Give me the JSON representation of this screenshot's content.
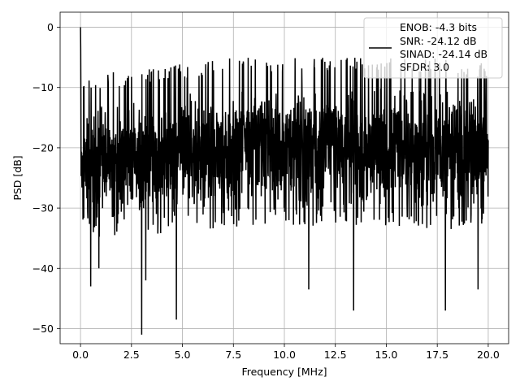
{
  "chart_data": {
    "type": "line",
    "title": "",
    "xlabel": "Frequency [MHz]",
    "ylabel": "PSD [dB]",
    "xlim": [
      -1.0,
      21.0
    ],
    "ylim": [
      -52.5,
      2.5
    ],
    "xticks": [
      0.0,
      2.5,
      5.0,
      7.5,
      10.0,
      12.5,
      15.0,
      17.5,
      20.0
    ],
    "xtick_labels": [
      "0.0",
      "2.5",
      "5.0",
      "7.5",
      "10.0",
      "12.5",
      "15.0",
      "17.5",
      "20.0"
    ],
    "yticks": [
      0,
      -10,
      -20,
      -30,
      -40,
      -50
    ],
    "ytick_labels": [
      "0",
      "−10",
      "−20",
      "−30",
      "−40",
      "−50"
    ],
    "grid": true,
    "legend_position": "top-right",
    "legend_lines": [
      "ENOB: -4.3 bits",
      "SNR: -24.12 dB",
      "SINAD: -24.14 dB",
      "SFDR: 3.0"
    ],
    "series": [
      {
        "color": "#000000",
        "line_width": 1.5,
        "x_range": [
          0.0,
          20.0
        ],
        "n_points": 2000,
        "peak": {
          "x": 0.0,
          "y": 0.0
        },
        "upper_envelope": {
          "x": [
            0.1,
            2.5,
            5.0,
            7.5,
            10.0,
            12.5,
            15.0,
            17.5,
            20.0
          ],
          "y": [
            -10,
            -9,
            -8,
            -7,
            -7,
            -7,
            -7,
            -7,
            -8
          ]
        },
        "median": {
          "x": [
            0.1,
            5.0,
            10.0,
            15.0,
            20.0
          ],
          "y": [
            -17,
            -16,
            -15,
            -15,
            -16
          ]
        },
        "notable_dips": [
          {
            "x": 0.5,
            "y": -43
          },
          {
            "x": 0.9,
            "y": -40
          },
          {
            "x": 3.0,
            "y": -51
          },
          {
            "x": 3.2,
            "y": -42
          },
          {
            "x": 4.7,
            "y": -48.5
          },
          {
            "x": 11.2,
            "y": -43.5
          },
          {
            "x": 13.4,
            "y": -47
          },
          {
            "x": 17.9,
            "y": -47
          },
          {
            "x": 19.5,
            "y": -43.5
          }
        ]
      }
    ]
  }
}
